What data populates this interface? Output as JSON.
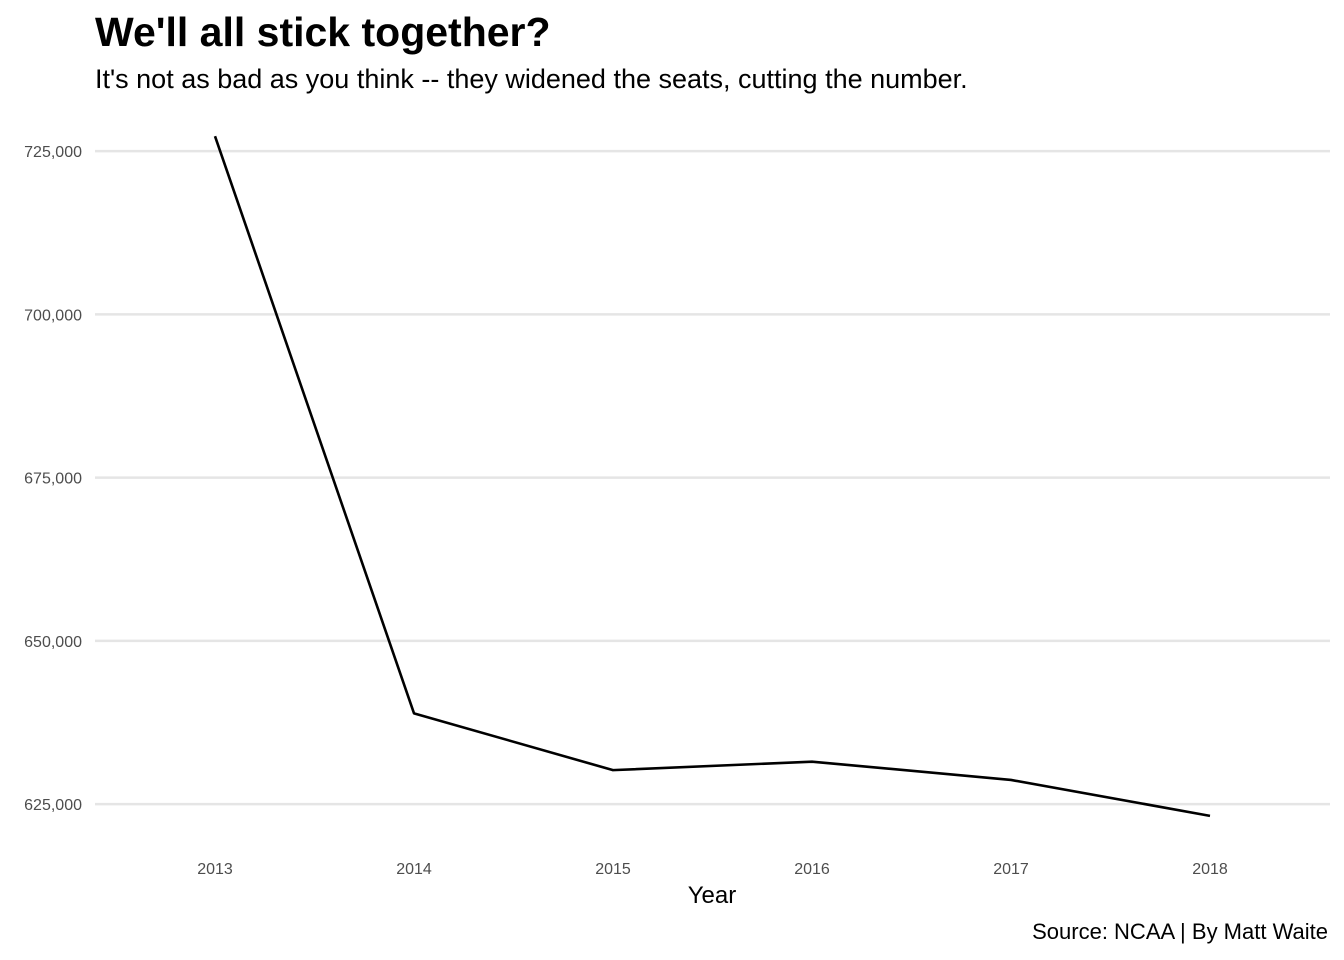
{
  "chart_data": {
    "type": "line",
    "title": "We'll all stick together?",
    "subtitle": "It's not as bad as you think -- they widened the seats, cutting the number.",
    "caption": "Source: NCAA | By Matt Waite",
    "xlabel": "Year",
    "ylabel": "",
    "x": [
      "2013",
      "2014",
      "2015",
      "2016",
      "2017",
      "2018"
    ],
    "series": [
      {
        "values": [
          727300,
          638900,
          630200,
          631500,
          628700,
          623200
        ],
        "color": "#000000"
      }
    ],
    "y_ticks": [
      625000,
      650000,
      675000,
      700000,
      725000
    ],
    "y_tick_labels": [
      "625,000",
      "650,000",
      "675,000",
      "700,000",
      "725,000"
    ],
    "ylim": [
      619500,
      731000
    ],
    "grid": "horizontal major",
    "legend": "none",
    "colors": {
      "line": "#000000",
      "grid": "#e5e5e5",
      "tick_text": "#4d4d4d"
    }
  }
}
